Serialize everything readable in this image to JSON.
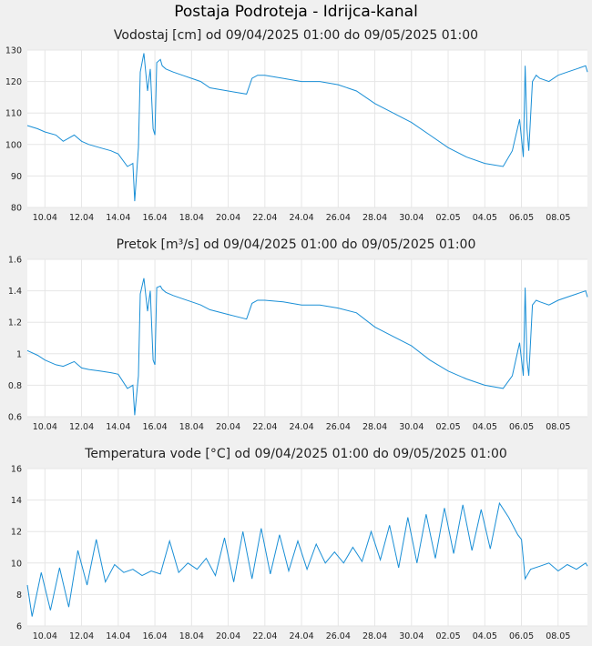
{
  "page": {
    "title": "Postaja Podroteja - Idrijca-kanal"
  },
  "colors": {
    "background": "#f0f0f0",
    "plot_background": "#ffffff",
    "grid": "#e6e6e6",
    "series": "#1a8fd6"
  },
  "chart_data": [
    {
      "type": "line",
      "title": "Vodostaj [cm] od 09/04/2025 01:00 do 09/05/2025 01:00",
      "x_ticks": [
        "10.04",
        "12.04",
        "14.04",
        "16.04",
        "18.04",
        "20.04",
        "22.04",
        "24.04",
        "26.04",
        "28.04",
        "30.04",
        "02.05",
        "04.05",
        "06.05",
        "08.05"
      ],
      "x_range": [
        9.04,
        39.6
      ],
      "ylim": [
        80,
        130
      ],
      "y_ticks": [
        "80",
        "90",
        "100",
        "110",
        "120",
        "130"
      ],
      "y_tick_values": [
        80,
        90,
        100,
        110,
        120,
        130
      ],
      "grid": true,
      "series": [
        {
          "x": [
            9.04,
            9.6,
            10.0,
            10.6,
            11.0,
            11.6,
            12.0,
            12.4,
            13.0,
            13.6,
            14.0,
            14.5,
            14.8,
            14.9,
            15.1,
            15.2,
            15.4,
            15.6,
            15.75,
            15.9,
            16.0,
            16.1,
            16.3,
            16.4,
            16.6,
            17.0,
            17.5,
            18.0,
            18.5,
            19.0,
            20.0,
            21.0,
            21.3,
            21.6,
            22.0,
            23.0,
            24.0,
            25.0,
            26.0,
            27.0,
            28.0,
            29.0,
            30.0,
            31.0,
            32.0,
            33.0,
            34.0,
            35.0,
            35.5,
            35.9,
            36.1,
            36.2,
            36.3,
            36.4,
            36.6,
            36.8,
            37.0,
            37.5,
            38.0,
            38.5,
            39.0,
            39.5,
            39.6
          ],
          "values": [
            106,
            105,
            104,
            103,
            101,
            103,
            101,
            100,
            99,
            98,
            97,
            93,
            94,
            82,
            99,
            123,
            129,
            117,
            124,
            105,
            103,
            126,
            127,
            125,
            124,
            123,
            122,
            121,
            120,
            118,
            117,
            116,
            121,
            122,
            122,
            121,
            120,
            120,
            119,
            117,
            113,
            110,
            107,
            103,
            99,
            96,
            94,
            93,
            98,
            108,
            96,
            125,
            105,
            98,
            120,
            122,
            121,
            120,
            122,
            123,
            124,
            125,
            123
          ]
        }
      ]
    },
    {
      "type": "line",
      "title": "Pretok [m³/s] od 09/04/2025 01:00 do 09/05/2025 01:00",
      "x_ticks": [
        "10.04",
        "12.04",
        "14.04",
        "16.04",
        "18.04",
        "20.04",
        "22.04",
        "24.04",
        "26.04",
        "28.04",
        "30.04",
        "02.05",
        "04.05",
        "06.05",
        "08.05"
      ],
      "x_range": [
        9.04,
        39.6
      ],
      "ylim": [
        0.6,
        1.6
      ],
      "y_ticks": [
        "0.6",
        "0.8",
        "1",
        "1.2",
        "1.4",
        "1.6"
      ],
      "y_tick_values": [
        0.6,
        0.8,
        1.0,
        1.2,
        1.4,
        1.6
      ],
      "grid": true,
      "series": [
        {
          "x": [
            9.04,
            9.6,
            10.0,
            10.6,
            11.0,
            11.6,
            12.0,
            12.4,
            13.0,
            13.6,
            14.0,
            14.5,
            14.8,
            14.9,
            15.1,
            15.2,
            15.4,
            15.6,
            15.75,
            15.9,
            16.0,
            16.1,
            16.3,
            16.4,
            16.6,
            17.0,
            17.5,
            18.0,
            18.5,
            19.0,
            20.0,
            21.0,
            21.3,
            21.6,
            22.0,
            23.0,
            24.0,
            25.0,
            26.0,
            27.0,
            28.0,
            29.0,
            30.0,
            31.0,
            32.0,
            33.0,
            34.0,
            35.0,
            35.5,
            35.9,
            36.1,
            36.2,
            36.3,
            36.4,
            36.6,
            36.8,
            37.0,
            37.5,
            38.0,
            38.5,
            39.0,
            39.5,
            39.6
          ],
          "values": [
            1.02,
            0.99,
            0.96,
            0.93,
            0.92,
            0.95,
            0.91,
            0.9,
            0.89,
            0.88,
            0.87,
            0.78,
            0.8,
            0.61,
            0.86,
            1.38,
            1.48,
            1.27,
            1.4,
            0.96,
            0.93,
            1.42,
            1.43,
            1.41,
            1.39,
            1.37,
            1.35,
            1.33,
            1.31,
            1.28,
            1.25,
            1.22,
            1.32,
            1.34,
            1.34,
            1.33,
            1.31,
            1.31,
            1.29,
            1.26,
            1.17,
            1.11,
            1.05,
            0.96,
            0.89,
            0.84,
            0.8,
            0.78,
            0.86,
            1.07,
            0.86,
            1.42,
            0.96,
            0.86,
            1.31,
            1.34,
            1.33,
            1.31,
            1.34,
            1.36,
            1.38,
            1.4,
            1.36
          ]
        }
      ]
    },
    {
      "type": "line",
      "title": "Temperatura vode [°C] od 09/04/2025 01:00 do 09/05/2025 01:00",
      "x_ticks": [
        "10.04",
        "12.04",
        "14.04",
        "16.04",
        "18.04",
        "20.04",
        "22.04",
        "24.04",
        "26.04",
        "28.04",
        "30.04",
        "02.05",
        "04.05",
        "06.05",
        "08.05"
      ],
      "x_range": [
        9.04,
        39.6
      ],
      "ylim": [
        6,
        16
      ],
      "y_ticks": [
        "6",
        "8",
        "10",
        "12",
        "14",
        "16"
      ],
      "y_tick_values": [
        6,
        8,
        10,
        12,
        14,
        16
      ],
      "grid": true,
      "series": [
        {
          "x": [
            9.04,
            9.3,
            9.8,
            10.3,
            10.8,
            11.3,
            11.8,
            12.3,
            12.8,
            13.3,
            13.8,
            14.3,
            14.8,
            15.3,
            15.8,
            16.3,
            16.8,
            17.3,
            17.8,
            18.3,
            18.8,
            19.3,
            19.8,
            20.3,
            20.8,
            21.3,
            21.8,
            22.3,
            22.8,
            23.3,
            23.8,
            24.3,
            24.8,
            25.3,
            25.8,
            26.3,
            26.8,
            27.3,
            27.8,
            28.3,
            28.8,
            29.3,
            29.8,
            30.3,
            30.8,
            31.3,
            31.8,
            32.3,
            32.8,
            33.3,
            33.8,
            34.3,
            34.8,
            35.3,
            35.8,
            36.0,
            36.2,
            36.5,
            37.0,
            37.5,
            38.0,
            38.5,
            39.0,
            39.5,
            39.6
          ],
          "values": [
            8.6,
            6.6,
            9.4,
            7.0,
            9.7,
            7.2,
            10.8,
            8.6,
            11.5,
            8.8,
            9.9,
            9.4,
            9.6,
            9.2,
            9.5,
            9.3,
            11.4,
            9.4,
            10.0,
            9.6,
            10.3,
            9.2,
            11.6,
            8.8,
            12.0,
            9.0,
            12.2,
            9.3,
            11.8,
            9.5,
            11.4,
            9.6,
            11.2,
            10.0,
            10.7,
            10.0,
            11.0,
            10.1,
            12.0,
            10.2,
            12.4,
            9.7,
            12.9,
            10.0,
            13.1,
            10.3,
            13.5,
            10.6,
            13.7,
            10.8,
            13.4,
            10.9,
            13.8,
            12.9,
            11.8,
            11.5,
            9.0,
            9.6,
            9.8,
            10.0,
            9.5,
            9.9,
            9.6,
            10.0,
            9.8
          ]
        }
      ]
    }
  ]
}
